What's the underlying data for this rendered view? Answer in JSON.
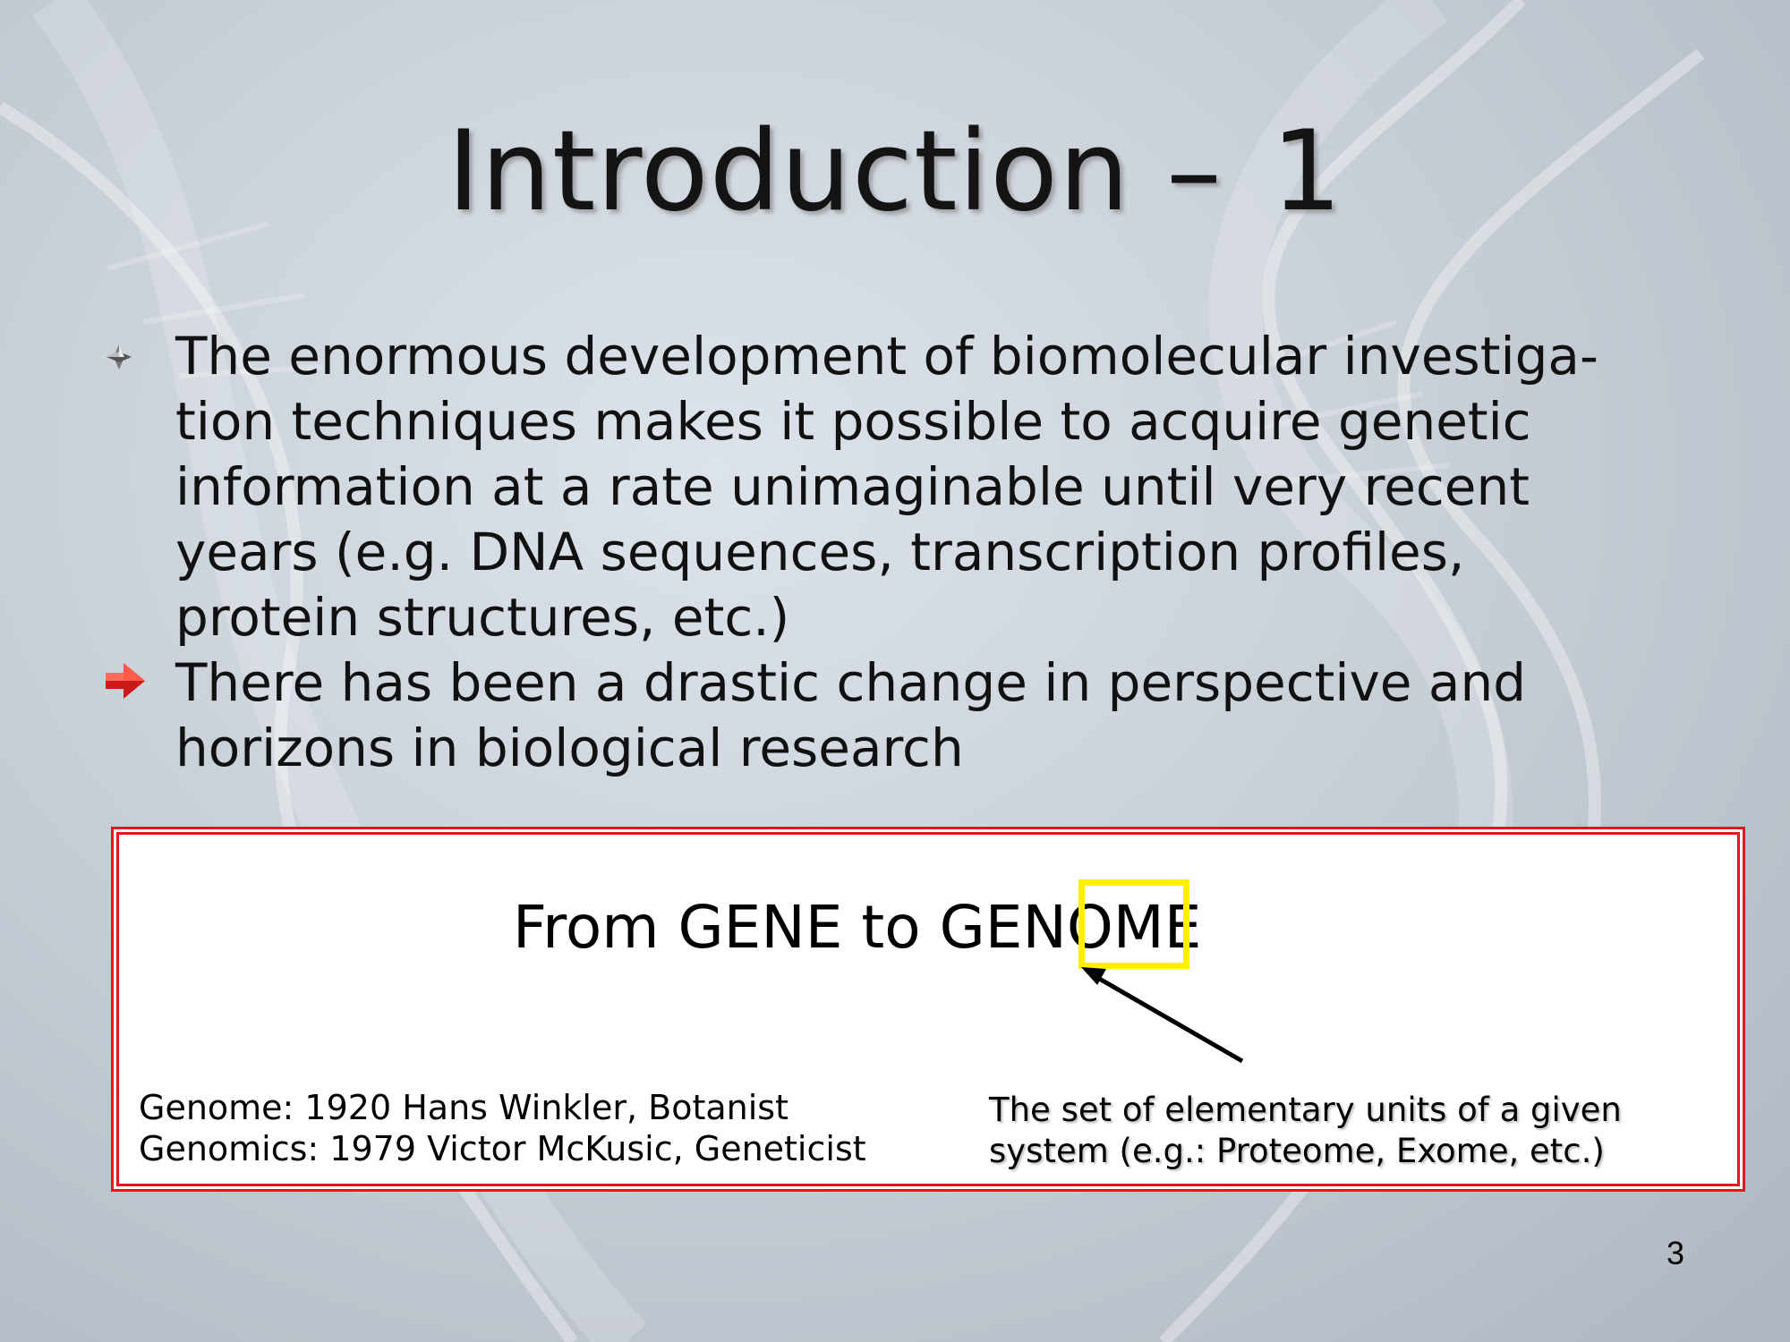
{
  "slide": {
    "title": "Introduction",
    "title_separator": "–",
    "title_number": "1",
    "page_number": "3"
  },
  "bullets": [
    {
      "icon": "diamond-bullet-icon",
      "lines": [
        "The enormous development of biomolecular investiga-",
        "tion techniques makes it possible to acquire genetic",
        "information at a rate unimaginable until very recent",
        "years (e.g. DNA sequences, transcription profiles,",
        "protein structures, etc.)"
      ]
    },
    {
      "icon": "red-arrow-bullet-icon",
      "lines": [
        "There has been a drastic change in perspective and",
        "horizons in biological research"
      ]
    }
  ],
  "panel": {
    "heading": "From GENE to GENOME",
    "highlighted_suffix": "OME",
    "left_note": [
      "Genome: 1920 Hans Winkler, Botanist",
      "Genomics: 1979 Victor McKusic, Geneticist"
    ],
    "right_note": [
      "The set of elementary units of a given",
      "system (e.g.: Proteome, Exome, etc.)"
    ]
  },
  "colors": {
    "panel_border": "#e0191f",
    "highlight": "#ffef00",
    "bullet_arrow": "#cc1a1a"
  }
}
